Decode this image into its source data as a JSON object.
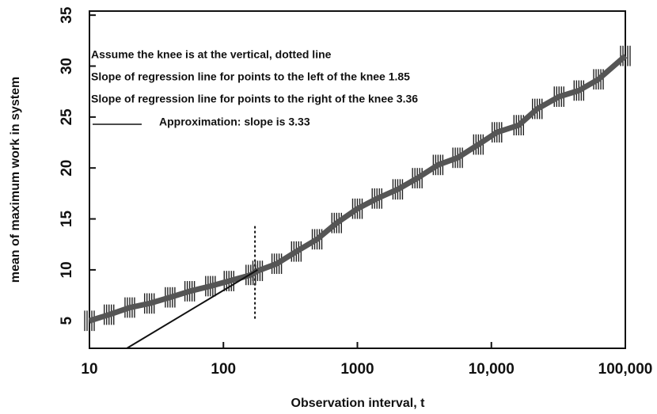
{
  "chart_data": {
    "type": "line",
    "xlabel": "Observation interval, t",
    "ylabel": "mean of maximum work in system",
    "xscale": "log",
    "xlim": [
      10,
      100000
    ],
    "ylim": [
      2.3,
      35.4
    ],
    "xticks": [
      10,
      100,
      1000,
      {
        "value": 10000,
        "label": "10,000"
      },
      {
        "value": 100000,
        "label": "100,000"
      }
    ],
    "yticks": [
      5,
      10,
      15,
      20,
      25,
      30,
      35
    ],
    "annotations": [
      "Assume the knee is at the vertical, dotted line",
      "Slope of regression line for points to the left of the knee 1.85",
      "Slope of regression line for points to the right of the knee 3.36"
    ],
    "knee": {
      "x": 172,
      "y": [
        5.2,
        14.5
      ]
    },
    "series": [
      {
        "color": "#555555",
        "x": [
          10,
          14,
          20,
          28,
          40,
          56,
          80,
          110,
          160,
          180,
          250,
          350,
          500,
          700,
          1000,
          1400,
          2000,
          2800,
          4000,
          5600,
          8000,
          11000,
          16000,
          22000,
          32000,
          45000,
          63000,
          100000
        ],
        "values": [
          5,
          5.6,
          6.3,
          6.7,
          7.3,
          7.9,
          8.4,
          8.9,
          9.5,
          9.9,
          10.6,
          11.8,
          13,
          14.6,
          16,
          17,
          17.9,
          19,
          20.3,
          21,
          22.3,
          23.5,
          24.2,
          25.8,
          27,
          27.6,
          28.7,
          31
        ],
        "errors": [
          1,
          1,
          1,
          1,
          1,
          1,
          1,
          1,
          1,
          1,
          1,
          1,
          1,
          1,
          1,
          1,
          1,
          1,
          1,
          1,
          1,
          1,
          1,
          1,
          1,
          1,
          1,
          1
        ]
      },
      {
        "name": "Approximation:  slope is 3.33",
        "color": "#111111",
        "x": [
          19,
          180
        ],
        "values": [
          2.3,
          10
        ]
      }
    ]
  }
}
